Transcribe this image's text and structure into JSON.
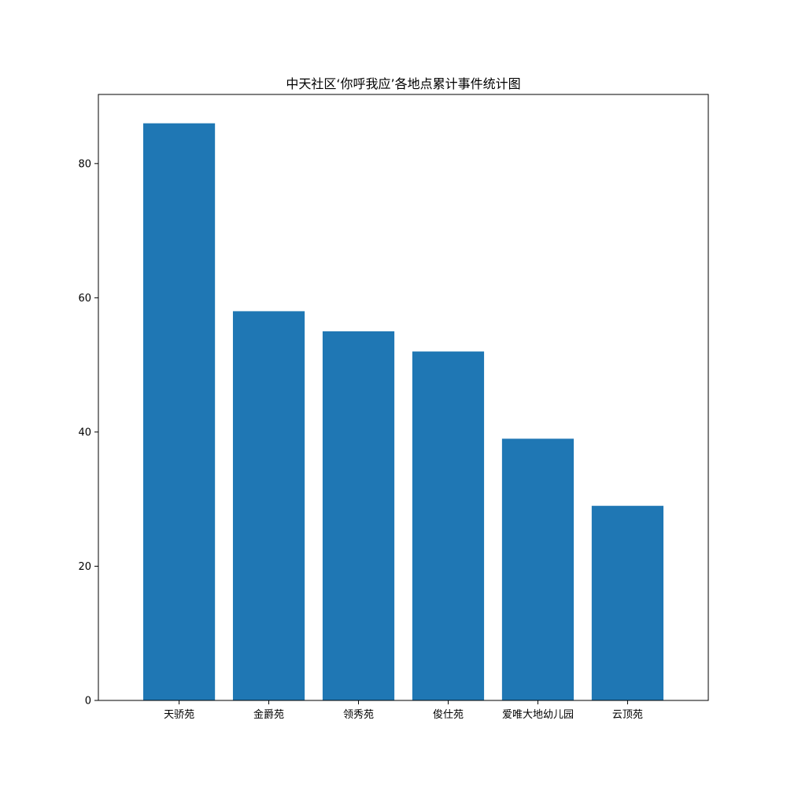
{
  "chart_data": {
    "type": "bar",
    "title": "中天社区‘你呼我应’各地点累计事件统计图",
    "xlabel": "",
    "ylabel": "",
    "categories": [
      "天骄苑",
      "金爵苑",
      "领秀苑",
      "俊仕苑",
      "爱唯大地幼儿园",
      "云顶苑"
    ],
    "values": [
      86,
      58,
      55,
      52,
      39,
      29
    ],
    "ylim": [
      0,
      90.3
    ],
    "yticks": [
      0,
      20,
      40,
      60,
      80
    ],
    "bar_color": "#1f77b4",
    "grid": false,
    "legend": false
  }
}
